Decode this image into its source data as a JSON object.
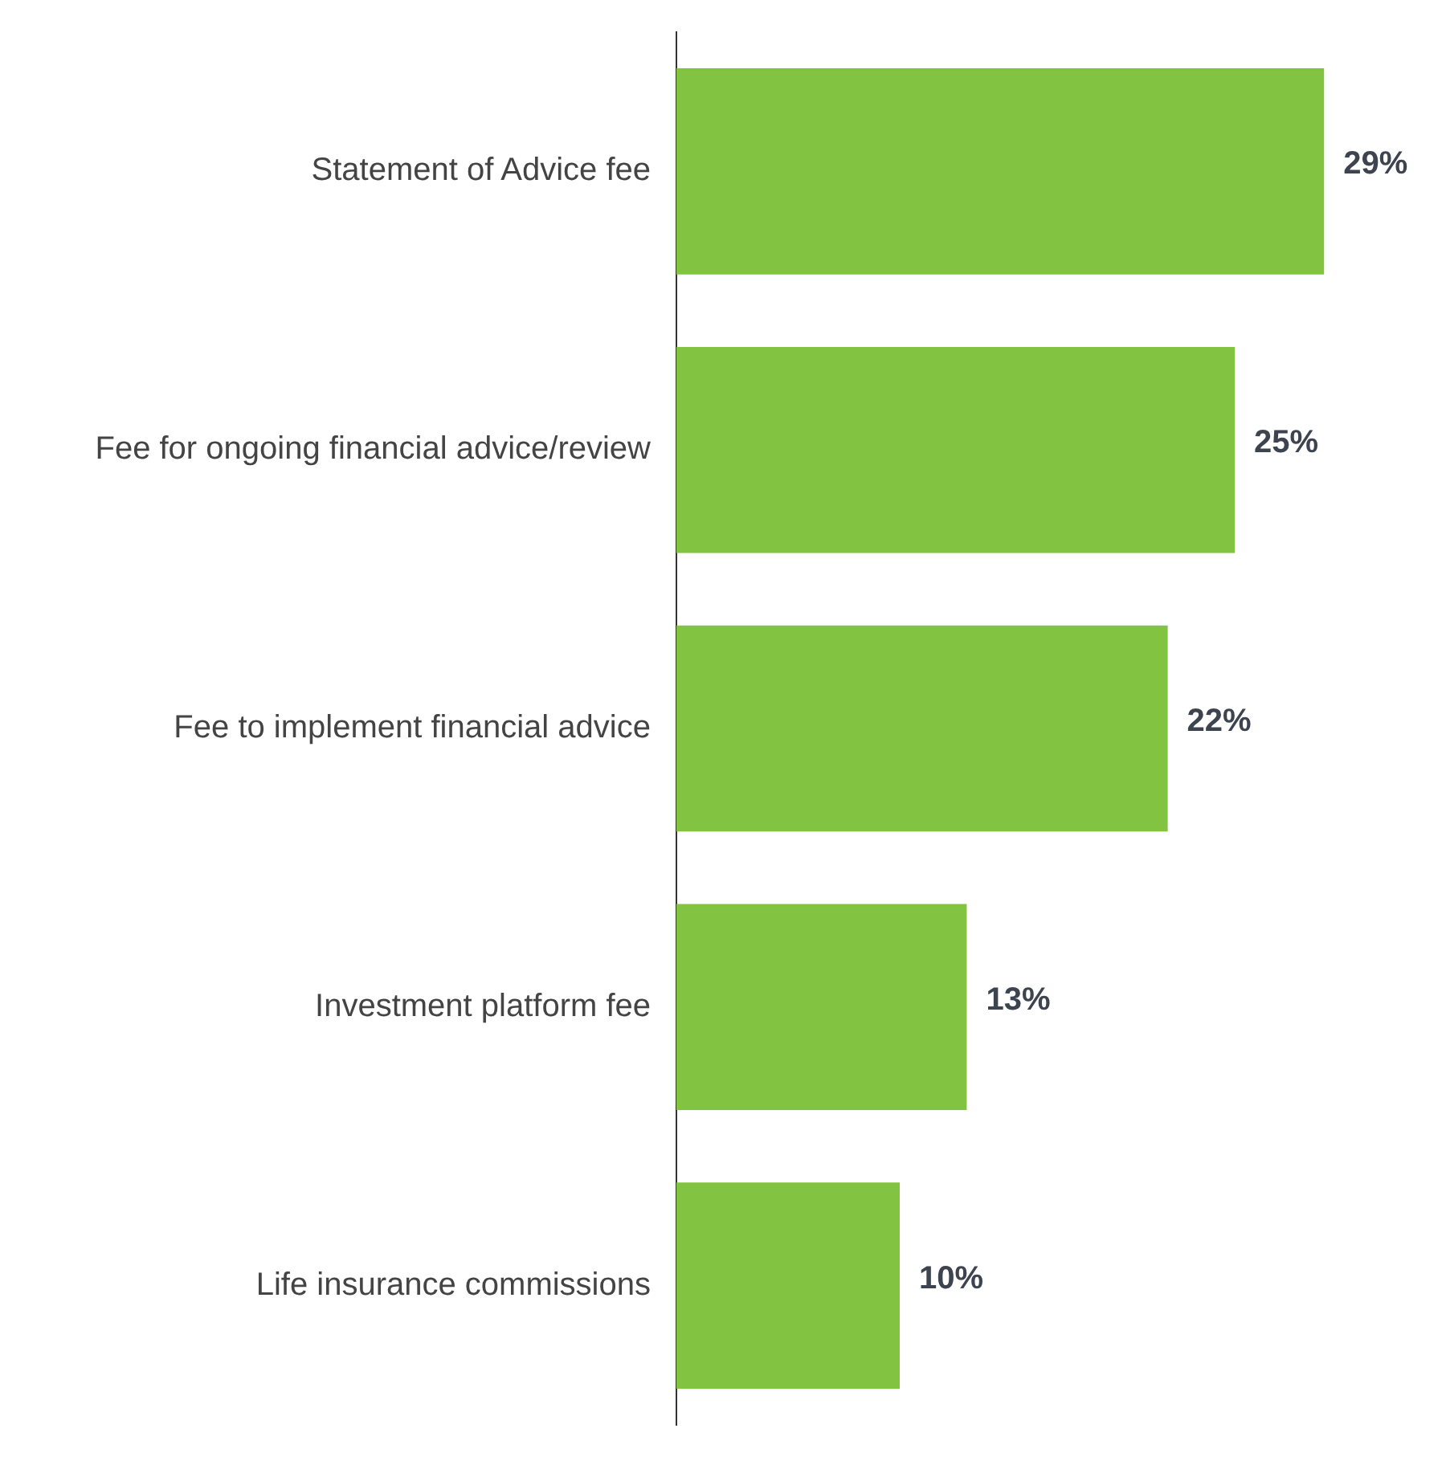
{
  "chart_data": {
    "type": "bar",
    "orientation": "horizontal",
    "categories": [
      "Statement of Advice fee",
      "Fee for ongoing financial advice/review",
      "Fee to implement financial advice",
      "Investment platform fee",
      "Life insurance commissions"
    ],
    "values": [
      29,
      25,
      22,
      13,
      10
    ],
    "value_labels": [
      "29%",
      "25%",
      "22%",
      "13%",
      "10%"
    ],
    "color": "#82c341"
  }
}
